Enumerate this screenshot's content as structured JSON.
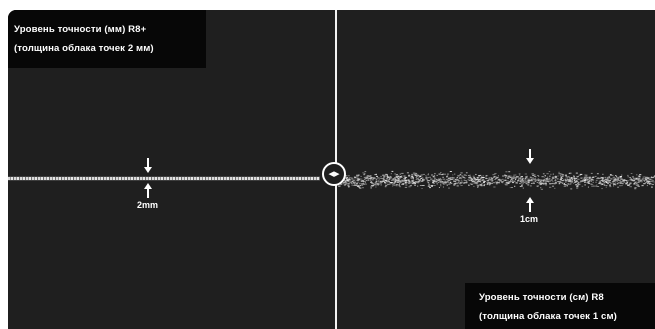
{
  "captions": {
    "top_left": {
      "line1": "Уровень точности (мм) R8+",
      "line2": "(толщина облака точек 2 мм)"
    },
    "bottom_right": {
      "line1": "Уровень точности (см) R8",
      "line2": "(толщина облака точек 1 см)"
    }
  },
  "measurements": {
    "left": "2mm",
    "right": "1cm"
  },
  "compare_handle": {
    "icon": "left-right-arrows-icon",
    "glyph": "◂▸"
  },
  "colors": {
    "background": "#1f1f1f",
    "panel": "#070707",
    "text": "#ffffff",
    "divider": "#f2f2f2",
    "cloud": "#d9d9d9"
  }
}
